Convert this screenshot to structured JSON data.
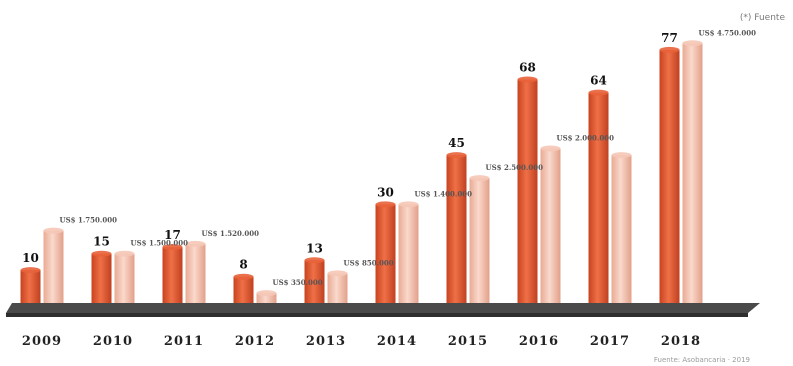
{
  "header": {
    "corner_label": "(*) Fuente"
  },
  "footer": {
    "source_note": "Fuente: Asobancaria · 2019"
  },
  "chart_data": {
    "type": "bar",
    "title": "",
    "xlabel": "",
    "ylabel": "",
    "grid": false,
    "categories": [
      "2009",
      "2010",
      "2011",
      "2012",
      "2013",
      "2014",
      "2015",
      "2016",
      "2017",
      "2018"
    ],
    "series": [
      {
        "color": "#e8623a",
        "values": [
          10,
          15,
          17,
          8,
          13,
          30,
          45,
          68,
          64,
          77
        ],
        "labels": [
          "10",
          "15",
          "17",
          "8",
          "13",
          "30",
          "45",
          "68",
          "64",
          "77"
        ]
      },
      {
        "color": "#f5c6b6",
        "values": [
          22,
          15,
          18,
          3,
          9,
          30,
          38,
          47,
          45,
          79
        ],
        "labels": [
          "US$ 1.750.000",
          "US$ 1.500.000",
          "US$ 1.520.000",
          "US$ 350.000",
          "US$ 850.000",
          "US$ 1.400.000",
          "US$ 2.500.000",
          "US$ 2.000.000",
          "",
          "US$ 4.750.000"
        ]
      }
    ]
  }
}
